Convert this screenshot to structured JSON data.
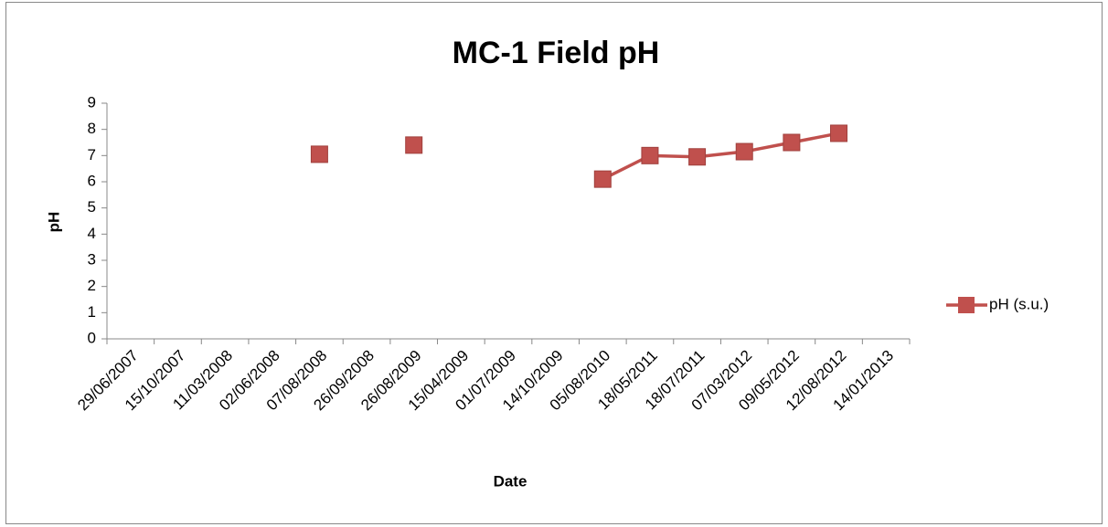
{
  "chart_data": {
    "type": "line",
    "title": "MC-1 Field pH",
    "x_label": "Date",
    "y_label": "pH",
    "categories": [
      "29/06/2007",
      "15/10/2007",
      "11/03/2008",
      "02/06/2008",
      "07/08/2008",
      "26/09/2008",
      "26/08/2009",
      "15/04/2009",
      "01/07/2009",
      "14/10/2009",
      "05/08/2010",
      "18/05/2011",
      "18/07/2011",
      "07/03/2012",
      "09/05/2012",
      "12/08/2012",
      "14/01/2013"
    ],
    "series": [
      {
        "name": "pH (s.u.)",
        "color": "#c0504d",
        "values": [
          null,
          null,
          null,
          null,
          7.05,
          null,
          7.4,
          null,
          null,
          null,
          6.1,
          7.0,
          6.95,
          7.15,
          7.5,
          7.85,
          null
        ]
      }
    ],
    "ylim": [
      0,
      9
    ],
    "yticks": [
      0,
      1,
      2,
      3,
      4,
      5,
      6,
      7,
      8,
      9
    ],
    "legend": "right"
  }
}
